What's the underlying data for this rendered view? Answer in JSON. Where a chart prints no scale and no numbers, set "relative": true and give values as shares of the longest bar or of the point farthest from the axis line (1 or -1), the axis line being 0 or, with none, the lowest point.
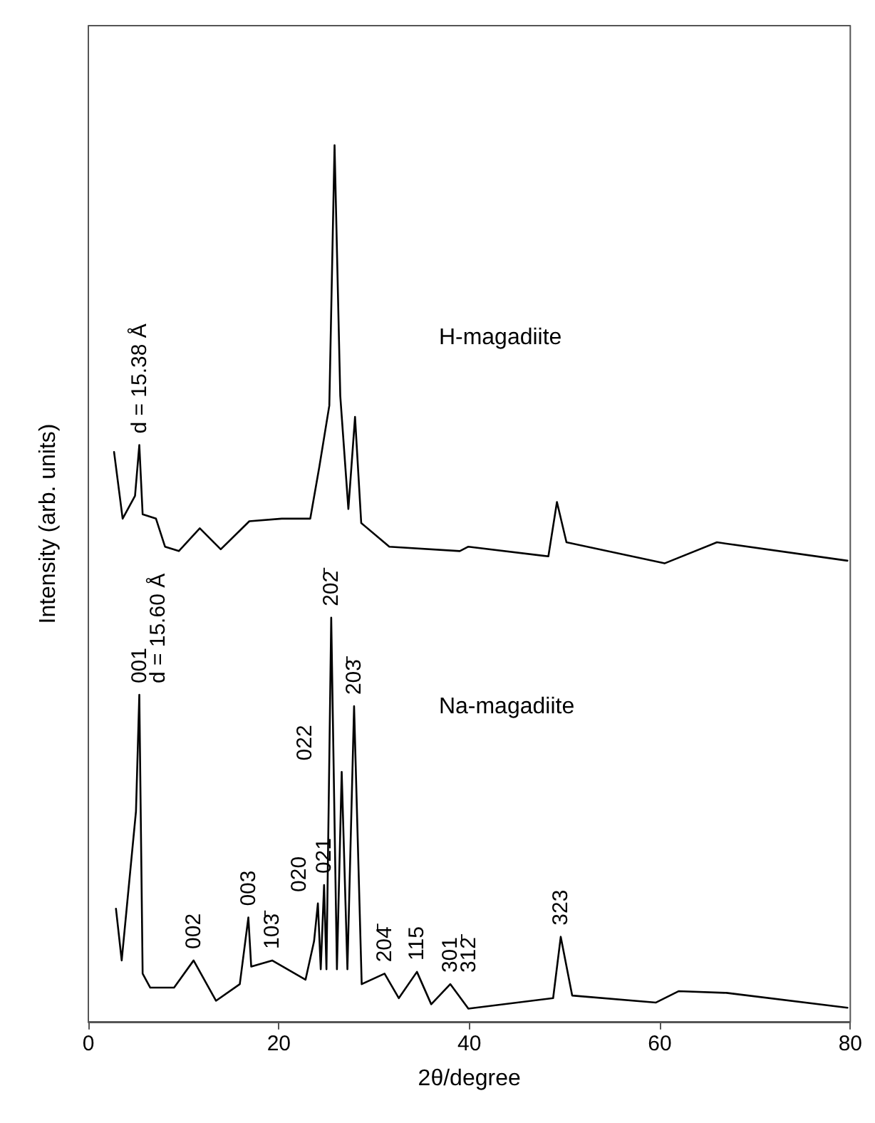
{
  "chart_data": {
    "type": "line",
    "relative": true,
    "xlabel": "2θ/degree",
    "ylabel": "Intensity (arb. units)",
    "xlim": [
      0,
      80
    ],
    "xticks": [
      0,
      20,
      40,
      60,
      80
    ],
    "tick_labels": "x",
    "grid": false,
    "legend": false,
    "marker": "none",
    "line_style": "solid",
    "series": [
      {
        "color": "#000000",
        "x": [
          2.7,
          3.6,
          4.9,
          5.35,
          5.7,
          7.1,
          8.05,
          9.5,
          11.7,
          13.9,
          16.9,
          20.3,
          23.3,
          24.25,
          25.3,
          25.85,
          26.45,
          27.3,
          28.0,
          28.65,
          31.6,
          39.0,
          39.9,
          48.3,
          49.2,
          50.2,
          60.5,
          66.0,
          79.7
        ],
        "values": [
          0.65,
          0.574,
          0.6,
          0.658,
          0.579,
          0.574,
          0.542,
          0.537,
          0.563,
          0.539,
          0.571,
          0.574,
          0.574,
          0.633,
          0.703,
          1.0,
          0.714,
          0.585,
          0.69,
          0.569,
          0.542,
          0.537,
          0.542,
          0.531,
          0.593,
          0.547,
          0.523,
          0.547,
          0.526
        ]
      },
      {
        "color": "#000000",
        "x": [
          2.9,
          3.5,
          5.0,
          5.35,
          5.7,
          6.5,
          9.0,
          11.05,
          13.4,
          15.9,
          16.8,
          17.1,
          19.3,
          22.8,
          23.7,
          24.1,
          24.4,
          24.75,
          25.0,
          25.5,
          26.1,
          26.6,
          27.2,
          27.9,
          28.7,
          31.1,
          32.6,
          34.5,
          36.0,
          38.0,
          39.9,
          48.8,
          49.6,
          50.8,
          59.6,
          62.0,
          67.0,
          79.7
        ],
        "values": [
          0.129,
          0.07,
          0.24,
          0.373,
          0.055,
          0.039,
          0.039,
          0.07,
          0.024,
          0.043,
          0.119,
          0.063,
          0.07,
          0.048,
          0.092,
          0.135,
          0.06,
          0.156,
          0.06,
          0.461,
          0.06,
          0.285,
          0.06,
          0.36,
          0.043,
          0.055,
          0.027,
          0.057,
          0.02,
          0.043,
          0.015,
          0.027,
          0.097,
          0.03,
          0.022,
          0.035,
          0.033,
          0.016
        ]
      }
    ],
    "annotations": [
      "H-magadiite",
      "Na-magadiite",
      {
        "text": "d = 15.38 Å",
        "x": 5.35,
        "y": 0.658
      },
      {
        "text": "001",
        "x": 5.35,
        "y": 0.373
      },
      {
        "text": "d = 15.60 Å",
        "x": 5.35,
        "y": 0.373
      },
      {
        "text": "002",
        "x": 11.05,
        "y": 0.07
      },
      {
        "text": "003",
        "x": 16.8,
        "y": 0.119
      },
      {
        "text": "103̄",
        "x": 19.3,
        "y": 0.07
      },
      {
        "text": "020",
        "x": 24.1,
        "y": 0.135
      },
      {
        "text": "021",
        "x": 24.75,
        "y": 0.156
      },
      {
        "text": "202̄",
        "x": 25.5,
        "y": 0.461
      },
      {
        "text": "022",
        "x": 26.6,
        "y": 0.285
      },
      {
        "text": "203̄",
        "x": 27.9,
        "y": 0.36
      },
      {
        "text": "204̄",
        "x": 31.1,
        "y": 0.055
      },
      {
        "text": "115",
        "x": 34.5,
        "y": 0.057
      },
      {
        "text": "301",
        "x": 38.0,
        "y": 0.043
      },
      {
        "text": "312̄",
        "x": 38.0,
        "y": 0.043
      },
      {
        "text": "323",
        "x": 49.6,
        "y": 0.097
      }
    ]
  }
}
